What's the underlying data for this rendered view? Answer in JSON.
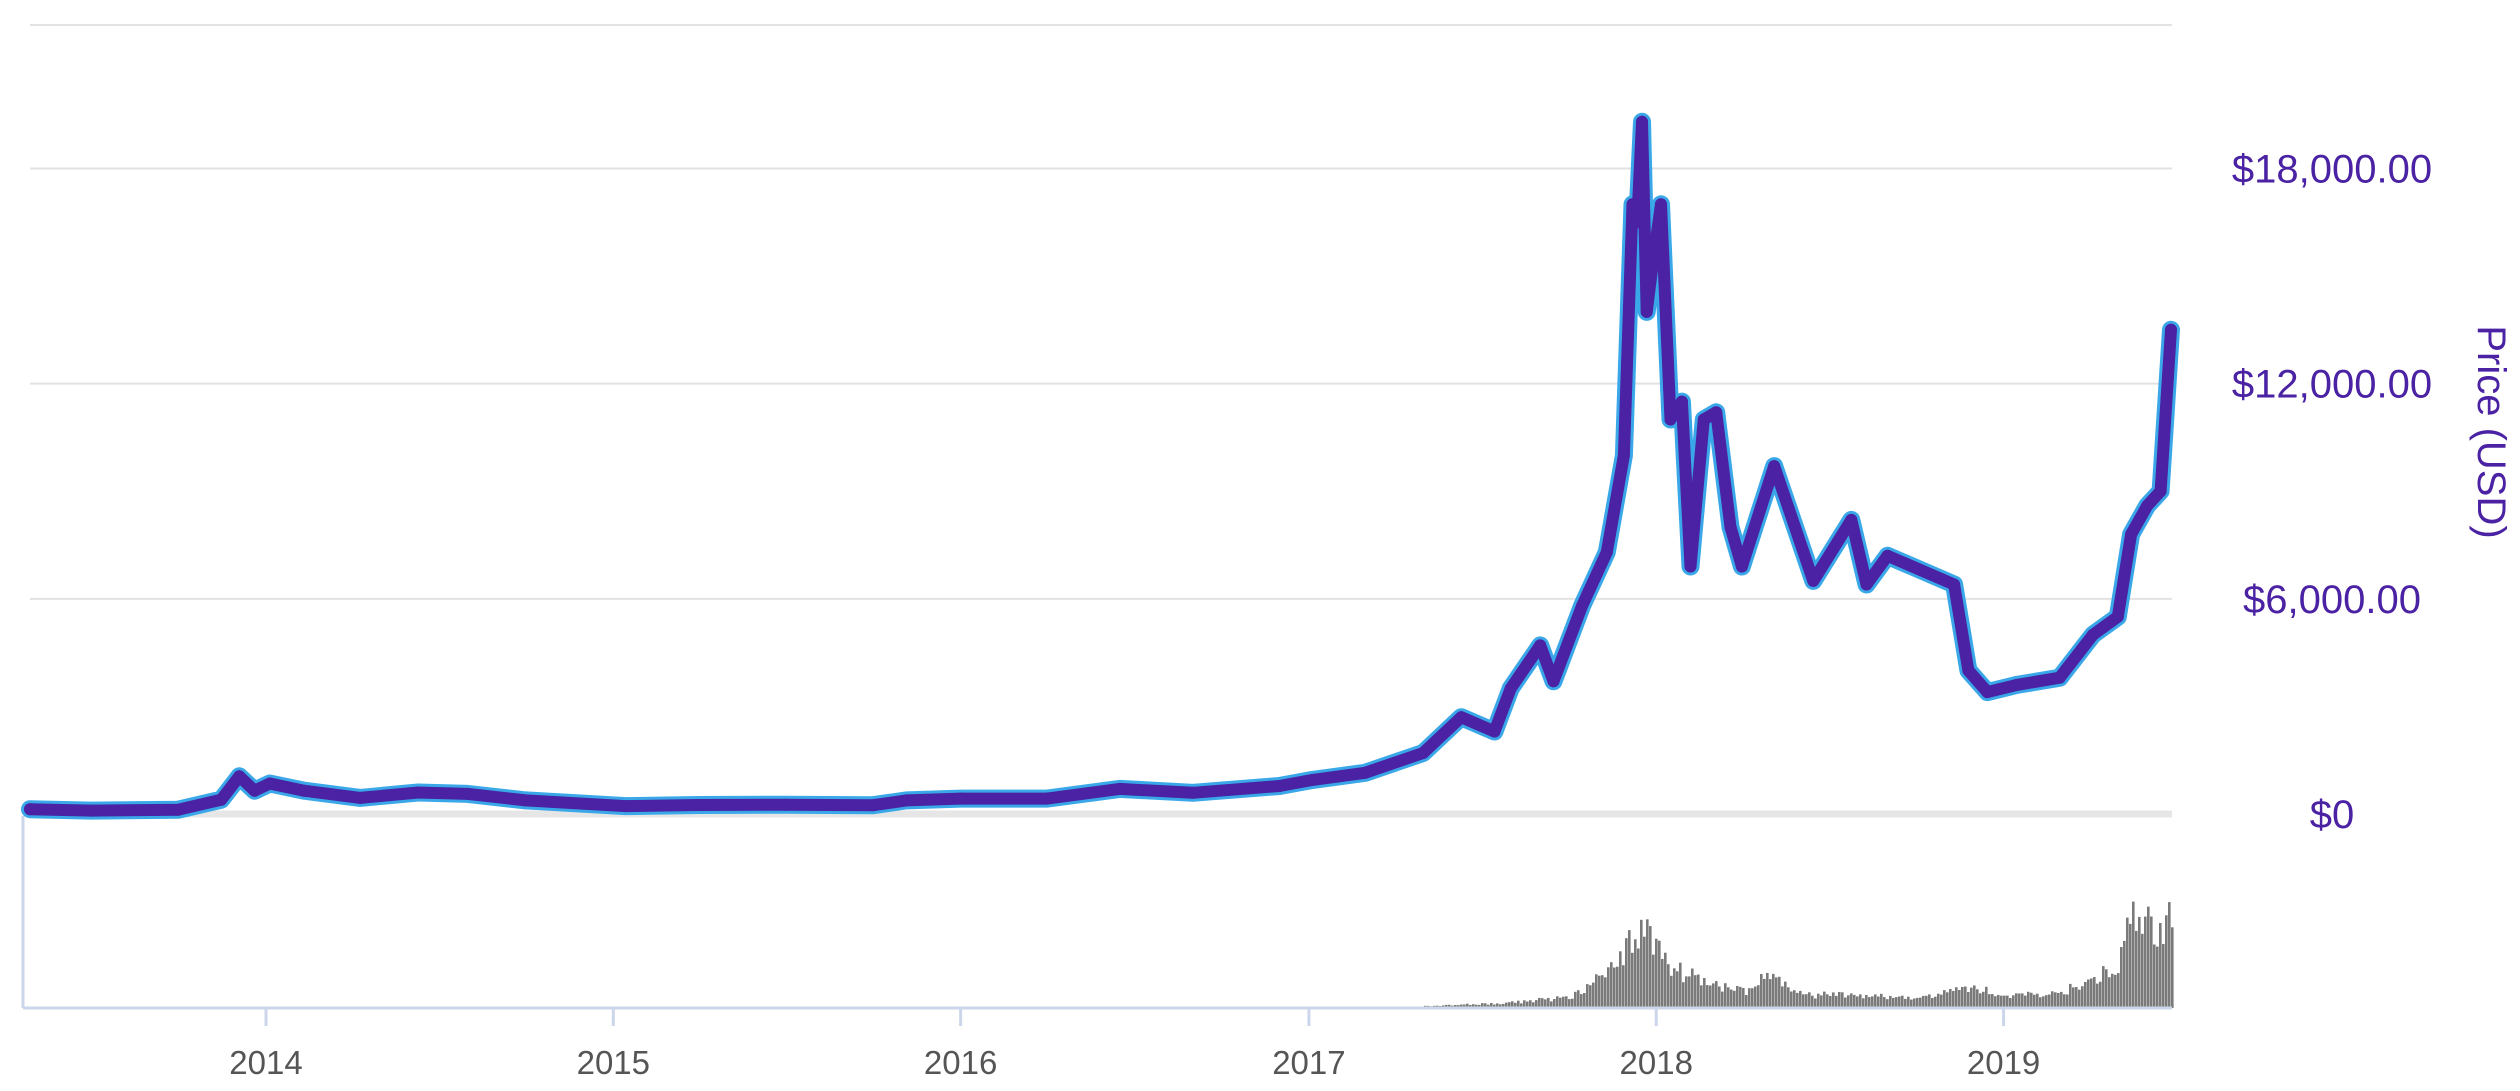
{
  "chart_data": {
    "type": "line",
    "title": "",
    "xlabel": "",
    "ylabel": "Price (USD)",
    "ylim": [
      0,
      22000
    ],
    "xlim": [
      "2013-04-28",
      "2019-06-27"
    ],
    "grid": true,
    "y_ticks": [
      {
        "value": 0,
        "label": "$0"
      },
      {
        "value": 6000,
        "label": "$6,000.00"
      },
      {
        "value": 12000,
        "label": "$12,000.00"
      },
      {
        "value": 18000,
        "label": "$18,000.00"
      }
    ],
    "x_ticks": [
      {
        "value": "2014-01-01",
        "label": "2014"
      },
      {
        "value": "2015-01-01",
        "label": "2015"
      },
      {
        "value": "2016-01-01",
        "label": "2016"
      },
      {
        "value": "2017-01-01",
        "label": "2017"
      },
      {
        "value": "2018-01-01",
        "label": "2018"
      },
      {
        "value": "2019-01-01",
        "label": "2019"
      }
    ],
    "series": [
      {
        "name": "",
        "color": "#4a22a3",
        "x": [
          "2013-04-28",
          "2013-07-01",
          "2013-10-01",
          "2013-11-15",
          "2013-12-04",
          "2013-12-20",
          "2014-01-05",
          "2014-02-10",
          "2014-04-10",
          "2014-06-10",
          "2014-08-01",
          "2014-10-01",
          "2015-01-14",
          "2015-04-01",
          "2015-07-01",
          "2015-10-01",
          "2015-11-05",
          "2016-01-01",
          "2016-04-01",
          "2016-06-16",
          "2016-09-01",
          "2016-12-01",
          "2017-01-05",
          "2017-03-01",
          "2017-05-01",
          "2017-06-10",
          "2017-07-15",
          "2017-08-01",
          "2017-09-01",
          "2017-09-15",
          "2017-10-15",
          "2017-11-10",
          "2017-11-28",
          "2017-12-07",
          "2017-12-12",
          "2017-12-17",
          "2017-12-22",
          "2017-12-29",
          "2018-01-06",
          "2018-01-16",
          "2018-01-28",
          "2018-02-06",
          "2018-02-20",
          "2018-03-05",
          "2018-03-20",
          "2018-04-01",
          "2018-05-05",
          "2018-06-15",
          "2018-07-25",
          "2018-08-10",
          "2018-09-01",
          "2018-11-10",
          "2018-11-25",
          "2018-12-15",
          "2019-01-15",
          "2019-03-01",
          "2019-04-05",
          "2019-05-01",
          "2019-05-15",
          "2019-06-01",
          "2019-06-15",
          "2019-06-26"
        ],
        "values": [
          135,
          95,
          120,
          400,
          1050,
          650,
          850,
          650,
          450,
          600,
          560,
          380,
          220,
          250,
          260,
          245,
          380,
          430,
          430,
          700,
          590,
          780,
          950,
          1150,
          1700,
          2700,
          2300,
          3500,
          4700,
          3700,
          5800,
          7300,
          10000,
          17000,
          16500,
          19300,
          14000,
          15500,
          17000,
          11000,
          11500,
          6900,
          11000,
          11200,
          8000,
          6900,
          9700,
          6500,
          8200,
          6400,
          7200,
          6400,
          4000,
          3400,
          3600,
          3800,
          5000,
          5500,
          7800,
          8600,
          9000,
          13500
        ]
      }
    ],
    "volume": {
      "color": "#7a7a7a",
      "x": [
        "2017-05-01",
        "2017-08-01",
        "2017-10-01",
        "2017-11-15",
        "2017-12-01",
        "2017-12-17",
        "2017-12-29",
        "2018-01-15",
        "2018-02-15",
        "2018-04-01",
        "2018-04-25",
        "2018-06-01",
        "2018-08-01",
        "2018-10-01",
        "2018-11-25",
        "2019-01-15",
        "2019-03-01",
        "2019-04-10",
        "2019-05-01",
        "2019-05-20",
        "2019-06-10",
        "2019-06-26"
      ],
      "values": [
        0.02,
        0.05,
        0.1,
        0.35,
        0.55,
        0.75,
        0.6,
        0.4,
        0.25,
        0.15,
        0.3,
        0.12,
        0.12,
        0.08,
        0.18,
        0.12,
        0.14,
        0.3,
        0.45,
        0.9,
        0.7,
        0.8
      ]
    }
  }
}
